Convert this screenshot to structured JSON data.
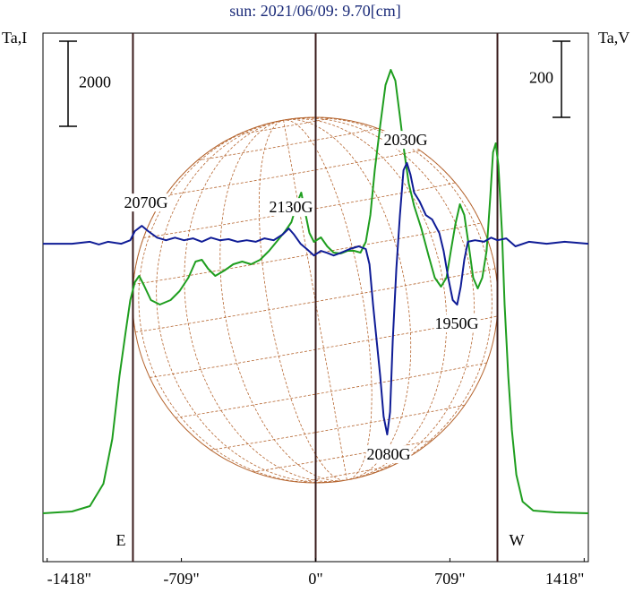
{
  "chart_data": {
    "type": "line",
    "title": "sun: 2021/06/09: 9.70[cm]",
    "y_label": "Ta,I",
    "y2_label": "Ta,V",
    "xlim": [
      -1440,
      1440
    ],
    "xticks": [
      {
        "value": -1418,
        "label": "-1418\""
      },
      {
        "value": -709,
        "label": "-709\""
      },
      {
        "value": 0,
        "label": "0\""
      },
      {
        "value": 709,
        "label": "709\""
      },
      {
        "value": 1418,
        "label": "1418\""
      }
    ],
    "ylim": [
      0,
      12420
    ],
    "y2lim": [
      -835,
      553
    ],
    "center_line": 0,
    "limbs": [
      {
        "x": -965,
        "label": "E"
      },
      {
        "x": 960,
        "label": "W"
      }
    ],
    "scale_bars": [
      {
        "axis": "y",
        "value": 2000
      },
      {
        "axis": "y2",
        "value": 200
      }
    ],
    "annotations": [
      "2070G",
      "2130G",
      "2030G",
      "1950G",
      "2080G"
    ],
    "series": [
      {
        "color": "#1f9e1f",
        "x": [
          -1440,
          -1287,
          -1192,
          -1121,
          -1074,
          -1036,
          -1003,
          -979,
          -955,
          -932,
          -908,
          -870,
          -823,
          -766,
          -719,
          -672,
          -634,
          -601,
          -568,
          -530,
          -482,
          -435,
          -388,
          -341,
          -293,
          -246,
          -199,
          -161,
          -128,
          -95,
          -76,
          -57,
          -33,
          -9,
          28,
          61,
          95,
          132,
          170,
          203,
          237,
          265,
          289,
          312,
          341,
          369,
          397,
          421,
          445,
          468,
          492,
          520,
          558,
          596,
          629,
          662,
          691,
          714,
          738,
          762,
          785,
          809,
          832,
          856,
          880,
          903,
          922,
          937,
          951,
          965,
          984,
          998,
          1017,
          1036,
          1060,
          1093,
          1149,
          1268,
          1440
        ],
        "values": [
          1137,
          1179,
          1305,
          1831,
          2884,
          4357,
          5410,
          6147,
          6568,
          6715,
          6504,
          6147,
          6041,
          6147,
          6357,
          6673,
          7052,
          7094,
          6883,
          6715,
          6841,
          6989,
          7052,
          6989,
          7094,
          7304,
          7557,
          7767,
          7978,
          8462,
          8673,
          8252,
          7725,
          7515,
          7620,
          7410,
          7262,
          7241,
          7304,
          7304,
          7262,
          7515,
          8146,
          9199,
          10251,
          11199,
          11556,
          11304,
          10462,
          9620,
          8883,
          8357,
          7831,
          7199,
          6673,
          6462,
          6673,
          7304,
          7936,
          8399,
          8146,
          7410,
          6673,
          6420,
          6673,
          7304,
          8567,
          9620,
          9830,
          9304,
          7725,
          6041,
          4357,
          3094,
          2042,
          1410,
          1200,
          1158,
          1137
        ]
      },
      {
        "color": "#0f1c96",
        "axis": "y2",
        "x": [
          -1440,
          -1287,
          -1192,
          -1145,
          -1097,
          -1026,
          -979,
          -955,
          -918,
          -885,
          -837,
          -790,
          -743,
          -695,
          -648,
          -601,
          -553,
          -506,
          -459,
          -412,
          -364,
          -317,
          -270,
          -222,
          -175,
          -142,
          -114,
          -80,
          -47,
          -9,
          28,
          61,
          95,
          132,
          180,
          227,
          265,
          284,
          303,
          322,
          341,
          359,
          378,
          393,
          407,
          426,
          445,
          464,
          482,
          501,
          520,
          549,
          582,
          615,
          653,
          676,
          700,
          724,
          747,
          766,
          785,
          804,
          842,
          889,
          927,
          960,
          1007,
          1055,
          1126,
          1220,
          1315,
          1440
        ],
        "values": [
          0,
          0,
          5,
          -2,
          5,
          0,
          9,
          33,
          47,
          33,
          16,
          9,
          16,
          9,
          14,
          5,
          16,
          9,
          12,
          5,
          9,
          5,
          14,
          9,
          24,
          40,
          24,
          0,
          -14,
          -31,
          -19,
          -24,
          -31,
          -24,
          -14,
          -7,
          -14,
          -54,
          -160,
          -254,
          -348,
          -454,
          -501,
          -442,
          -254,
          -66,
          75,
          193,
          212,
          181,
          134,
          111,
          75,
          64,
          28,
          -19,
          -89,
          -148,
          -160,
          -113,
          -42,
          5,
          9,
          5,
          16,
          9,
          14,
          -7,
          5,
          0,
          5,
          0
        ]
      }
    ]
  }
}
